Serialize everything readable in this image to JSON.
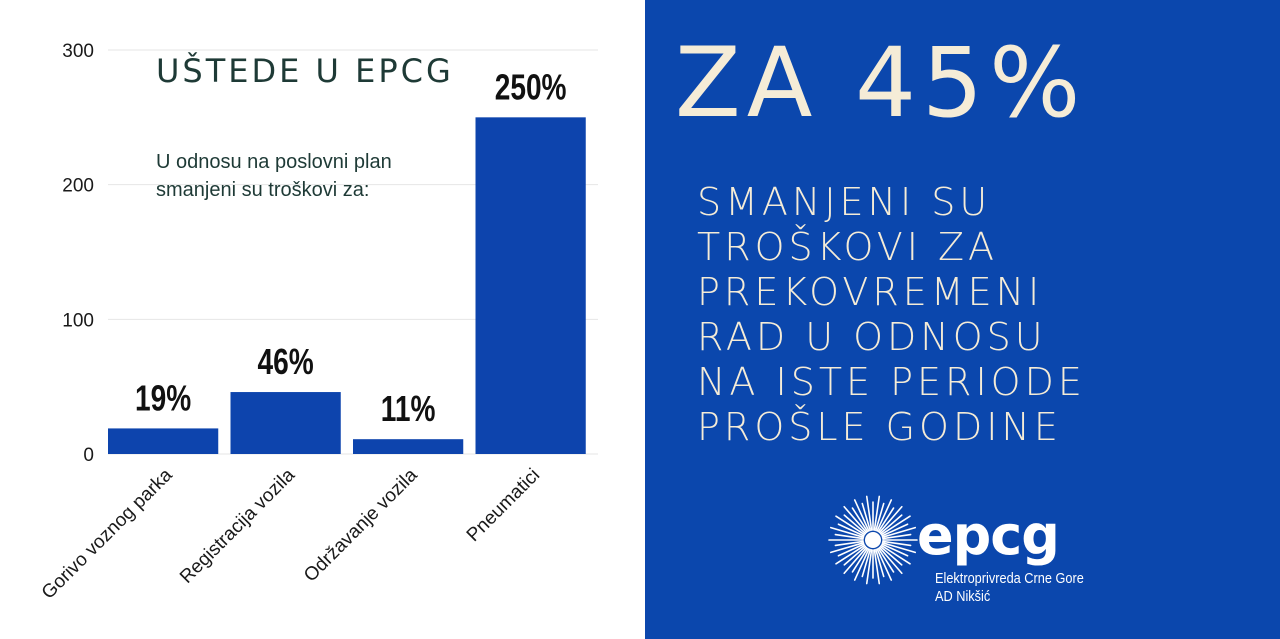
{
  "chart_data": {
    "type": "bar",
    "title": "UŠTEDE U EPCG",
    "subtitle_lines": [
      "U odnosu na poslovni plan",
      "smanjeni su troškovi za:"
    ],
    "categories": [
      "Gorivo voznog parka",
      "Registracija vozila",
      "Održavanje vozila",
      "Pneumatici"
    ],
    "values": [
      19,
      46,
      11,
      250
    ],
    "data_labels": [
      "19%",
      "46%",
      "11%",
      "250%"
    ],
    "ylim": [
      0,
      300
    ],
    "yticks": [
      0,
      100,
      200,
      300
    ],
    "xlabel": "",
    "ylabel": "",
    "grid": true,
    "bar_color": "#0d44ad"
  },
  "info": {
    "headline": "ZA 45%",
    "body_lines": [
      "SMANJENI SU",
      "TROŠKOVI ZA",
      "PREKOVREMENI",
      "RAD U ODNOSU",
      "NA ISTE PERIODE",
      "PROŠLE GODINE"
    ],
    "background_color": "#0b47ad",
    "text_color": "#f5ecd7"
  },
  "logo": {
    "wordmark": "epcg",
    "line1": "Elektroprivreda Crne Gore",
    "line2": "AD Nikšić"
  }
}
